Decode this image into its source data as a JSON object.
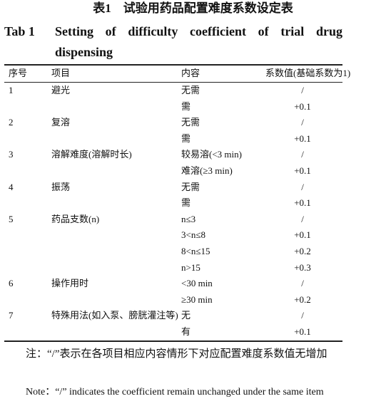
{
  "header": {
    "title_cn": "表1　试验用药品配置难度系数设定表",
    "tab_label": "Tab 1",
    "title_en": "Setting of difficulty coefficient of trial drug dispensing"
  },
  "table": {
    "columns": [
      "序号",
      "项目",
      "内容",
      "系数值(基础系数为1)"
    ],
    "groups": [
      {
        "no": "1",
        "item": "避光",
        "entries": [
          {
            "content": "无需",
            "value": "/"
          },
          {
            "content": "需",
            "value": "+0.1"
          }
        ]
      },
      {
        "no": "2",
        "item": "复溶",
        "entries": [
          {
            "content": "无需",
            "value": "/"
          },
          {
            "content": "需",
            "value": "+0.1"
          }
        ]
      },
      {
        "no": "3",
        "item": "溶解难度(溶解时长)",
        "entries": [
          {
            "content": "较易溶(<3 min)",
            "value": "/"
          },
          {
            "content": "难溶(≥3 min)",
            "value": "+0.1"
          }
        ]
      },
      {
        "no": "4",
        "item": "振荡",
        "entries": [
          {
            "content": "无需",
            "value": "/"
          },
          {
            "content": "需",
            "value": "+0.1"
          }
        ]
      },
      {
        "no": "5",
        "item": "药品支数(n)",
        "entries": [
          {
            "content": "n≤3",
            "value": "/"
          },
          {
            "content": "3<n≤8",
            "value": "+0.1"
          },
          {
            "content": "8<n≤15",
            "value": "+0.2"
          },
          {
            "content": "n>15",
            "value": "+0.3"
          }
        ]
      },
      {
        "no": "6",
        "item": "操作用时",
        "entries": [
          {
            "content": "<30 min",
            "value": "/"
          },
          {
            "content": "≥30 min",
            "value": "+0.2"
          }
        ]
      },
      {
        "no": "7",
        "item": "特殊用法(如入泵、膀胱灌注等)",
        "entries": [
          {
            "content": "无",
            "value": "/"
          },
          {
            "content": "有",
            "value": "+0.1"
          }
        ]
      }
    ]
  },
  "notes": {
    "cn": "注：“/”表示在各项目相应内容情形下对应配置难度系数值无增加",
    "en": "Note：“/” indicates the coefficient remain unchanged under the same item"
  }
}
